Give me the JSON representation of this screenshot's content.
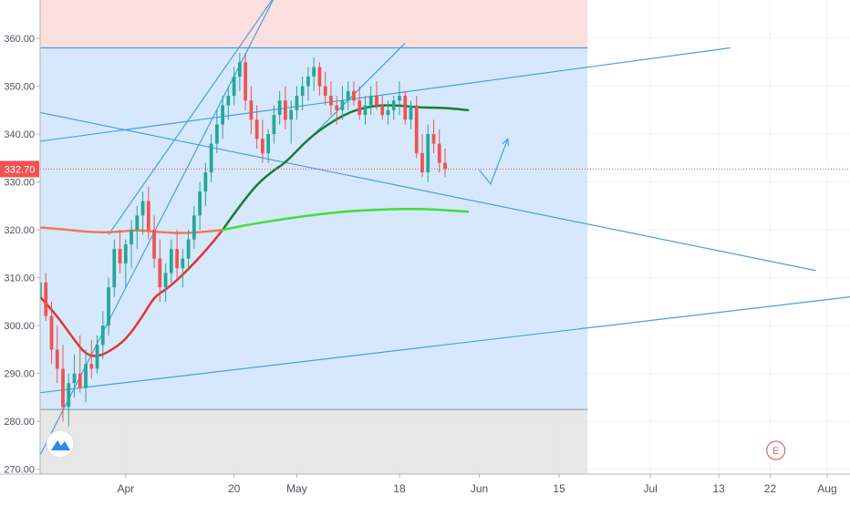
{
  "chart_data": {
    "type": "candlestick",
    "y_axis": {
      "ticks": [
        "360.00",
        "350.00",
        "340.00",
        "330.00",
        "320.00",
        "310.00",
        "300.00",
        "290.00",
        "280.00",
        "270.00"
      ],
      "ylim": [
        269,
        368
      ],
      "scale": "linear",
      "position": "left"
    },
    "x_axis": {
      "ticks": [
        {
          "label": "Apr",
          "day": 12
        },
        {
          "label": "20",
          "day": 31
        },
        {
          "label": "May",
          "day": 42
        },
        {
          "label": "18",
          "day": 60
        },
        {
          "label": "Jun",
          "day": 74
        },
        {
          "label": "15",
          "day": 88
        },
        {
          "label": "Jul",
          "day": 104
        },
        {
          "label": "13",
          "day": 116
        },
        {
          "label": "22",
          "day": 125
        },
        {
          "label": "Aug",
          "day": 135
        }
      ],
      "xlim": [
        -3,
        139
      ]
    },
    "grid": true,
    "last_price": {
      "label": "332.70",
      "value": 332.7,
      "color": "#ef5350"
    },
    "colors": {
      "up": "#26a69a",
      "down": "#ef5350",
      "trendline": "#4a9fe0",
      "zone_blue": "#cfe4fb",
      "zone_red": "#fbd9d9",
      "zone_gray": "#e3e3e3",
      "ma_red": "#e8302f",
      "ma_darkgreen": "#1e7a35",
      "ma_orange": "#ef7a4a",
      "ma_lightgreen": "#44dd3a"
    },
    "zones": [
      {
        "name": "upper-zone",
        "day_range": [
          -3,
          93
        ],
        "price_range": [
          358,
          368
        ],
        "color_key": "zone_red"
      },
      {
        "name": "middle-zone",
        "day_range": [
          -3,
          93
        ],
        "price_range": [
          282.5,
          358
        ],
        "color_key": "zone_blue"
      },
      {
        "name": "lower-zone",
        "day_range": [
          -3,
          93
        ],
        "price_range": [
          269,
          282.5
        ],
        "color_key": "zone_gray"
      }
    ],
    "trendlines": [
      {
        "name": "zone-top-line",
        "from": [
          -3,
          358
        ],
        "to": [
          93,
          358
        ]
      },
      {
        "name": "rising-channel-lower",
        "from": [
          -3,
          273
        ],
        "to": [
          40,
          373
        ]
      },
      {
        "name": "rising-channel-upper",
        "from": [
          9,
          319
        ],
        "to": [
          40,
          372
        ]
      },
      {
        "name": "short-channel",
        "from": [
          40,
          334
        ],
        "to": [
          61,
          359
        ]
      },
      {
        "name": "upper-slope-line",
        "from": [
          -3,
          338.5
        ],
        "to": [
          118,
          358
        ]
      },
      {
        "name": "descending-line",
        "from": [
          -3,
          344.5
        ],
        "to": [
          133,
          311.5
        ]
      },
      {
        "name": "lower-support-line",
        "from": [
          -3,
          286
        ],
        "to": [
          139,
          306
        ]
      }
    ],
    "annotation_arrow": {
      "points": [
        [
          74,
          332.5
        ],
        [
          76,
          329.6
        ],
        [
          79,
          339
        ]
      ]
    },
    "moving_averages": [
      {
        "name": "ma-red",
        "color_key": "ma_red",
        "width": 2.5,
        "points": [
          [
            -3,
            306
          ],
          [
            0,
            302
          ],
          [
            3,
            297
          ],
          [
            5,
            294
          ],
          [
            7,
            293.5
          ],
          [
            9,
            294.5
          ],
          [
            12,
            297
          ],
          [
            15,
            302
          ],
          [
            17,
            306
          ],
          [
            19,
            307.5
          ],
          [
            21,
            309.5
          ],
          [
            24,
            313
          ],
          [
            27,
            317
          ],
          [
            29,
            320
          ]
        ]
      },
      {
        "name": "ma-darkgreen",
        "color_key": "ma_darkgreen",
        "width": 2.5,
        "points": [
          [
            29,
            320
          ],
          [
            32,
            325
          ],
          [
            35,
            329.5
          ],
          [
            38,
            332.5
          ],
          [
            40,
            334
          ],
          [
            44,
            339
          ],
          [
            48,
            342.5
          ],
          [
            52,
            345
          ],
          [
            56,
            346
          ],
          [
            60,
            346
          ],
          [
            64,
            345.5
          ],
          [
            68,
            345.5
          ],
          [
            72,
            345
          ]
        ]
      },
      {
        "name": "ma-orange",
        "color_key": "ma_orange",
        "width": 2.5,
        "points": [
          [
            -3,
            320.5
          ],
          [
            2,
            320
          ],
          [
            6,
            319.5
          ],
          [
            10,
            319.5
          ],
          [
            14,
            320
          ],
          [
            18,
            319.5
          ],
          [
            22,
            319.3
          ],
          [
            25,
            319.5
          ],
          [
            29,
            320
          ]
        ]
      },
      {
        "name": "ma-lightgreen",
        "color_key": "ma_lightgreen",
        "width": 2.5,
        "points": [
          [
            29,
            320
          ],
          [
            34,
            321.2
          ],
          [
            40,
            322.3
          ],
          [
            46,
            323.3
          ],
          [
            52,
            324
          ],
          [
            58,
            324.3
          ],
          [
            64,
            324.4
          ],
          [
            68,
            324.1
          ],
          [
            72,
            323.8
          ]
        ]
      }
    ],
    "ohlc": [
      [
        -3,
        306,
        311,
        300,
        309
      ],
      [
        -2,
        309,
        311,
        301,
        302
      ],
      [
        -1,
        302,
        305,
        292,
        295
      ],
      [
        0,
        295,
        300,
        288,
        291
      ],
      [
        1,
        291,
        296,
        280,
        283
      ],
      [
        2,
        283,
        290,
        279,
        288
      ],
      [
        3,
        288,
        294,
        285,
        290
      ],
      [
        4,
        290,
        298,
        286,
        287
      ],
      [
        5,
        287,
        295,
        284,
        292
      ],
      [
        6,
        292,
        297,
        289,
        291
      ],
      [
        7,
        291,
        298,
        290,
        296
      ],
      [
        8,
        296,
        303,
        293,
        300
      ],
      [
        9,
        300,
        310,
        298,
        308
      ],
      [
        10,
        308,
        318,
        306,
        316
      ],
      [
        11,
        316,
        320,
        311,
        313
      ],
      [
        12,
        313,
        318,
        308,
        317
      ],
      [
        13,
        317,
        322,
        312,
        320
      ],
      [
        14,
        320,
        325,
        316,
        323
      ],
      [
        15,
        323,
        328,
        319,
        326
      ],
      [
        16,
        326,
        329,
        318,
        320
      ],
      [
        17,
        320,
        323,
        312,
        314
      ],
      [
        18,
        314,
        318,
        305,
        308
      ],
      [
        19,
        308,
        313,
        305,
        311
      ],
      [
        20,
        311,
        318,
        309,
        316
      ],
      [
        21,
        316,
        320,
        310,
        312
      ],
      [
        22,
        312,
        316,
        308,
        314
      ],
      [
        23,
        314,
        320,
        312,
        318
      ],
      [
        24,
        318,
        325,
        316,
        323
      ],
      [
        25,
        323,
        330,
        320,
        328
      ],
      [
        26,
        328,
        334,
        325,
        332
      ],
      [
        27,
        332,
        340,
        330,
        338
      ],
      [
        28,
        338,
        345,
        336,
        342
      ],
      [
        29,
        342,
        348,
        339,
        346
      ],
      [
        30,
        346,
        350,
        343,
        348
      ],
      [
        31,
        348,
        354,
        346,
        352
      ],
      [
        32,
        352,
        357,
        349,
        355
      ],
      [
        33,
        355,
        357,
        345,
        347
      ],
      [
        34,
        347,
        350,
        340,
        343
      ],
      [
        35,
        343,
        346,
        337,
        339
      ],
      [
        36,
        339,
        343,
        334,
        336
      ],
      [
        37,
        336,
        341,
        334,
        340
      ],
      [
        38,
        340,
        346,
        338,
        344
      ],
      [
        39,
        344,
        349,
        342,
        347
      ],
      [
        40,
        347,
        350,
        341,
        343
      ],
      [
        41,
        343,
        347,
        338,
        345
      ],
      [
        42,
        345,
        350,
        343,
        348
      ],
      [
        43,
        348,
        352,
        345,
        350
      ],
      [
        44,
        350,
        354,
        347,
        352
      ],
      [
        45,
        352,
        356,
        349,
        354
      ],
      [
        46,
        354,
        355,
        348,
        350
      ],
      [
        47,
        350,
        353,
        346,
        348
      ],
      [
        48,
        348,
        351,
        344,
        346
      ],
      [
        49,
        346,
        348,
        342,
        345
      ],
      [
        50,
        345,
        350,
        343,
        347
      ],
      [
        51,
        347,
        351,
        345,
        349
      ],
      [
        52,
        349,
        351,
        346,
        347
      ],
      [
        53,
        347,
        350,
        343,
        344
      ],
      [
        54,
        344,
        348,
        342,
        346
      ],
      [
        55,
        346,
        350,
        344,
        348
      ],
      [
        56,
        348,
        351,
        345,
        346
      ],
      [
        57,
        346,
        348,
        343,
        344
      ],
      [
        58,
        344,
        347,
        342,
        345
      ],
      [
        59,
        345,
        348,
        343,
        347
      ],
      [
        60,
        347,
        351,
        344,
        348
      ],
      [
        61,
        348,
        349,
        342,
        343
      ],
      [
        62,
        343,
        347,
        341,
        346
      ],
      [
        63,
        346,
        348,
        335,
        336
      ],
      [
        64,
        336,
        340,
        331,
        332
      ],
      [
        65,
        332,
        342,
        330,
        340
      ],
      [
        66,
        340,
        343,
        336,
        338
      ],
      [
        67,
        338,
        341,
        332,
        334
      ],
      [
        68,
        334,
        337,
        331,
        332.7
      ]
    ]
  },
  "watermark_icon": "cloud-logo-icon",
  "earnings_marker": {
    "label": "E",
    "day": 126,
    "color": "#e06666"
  }
}
